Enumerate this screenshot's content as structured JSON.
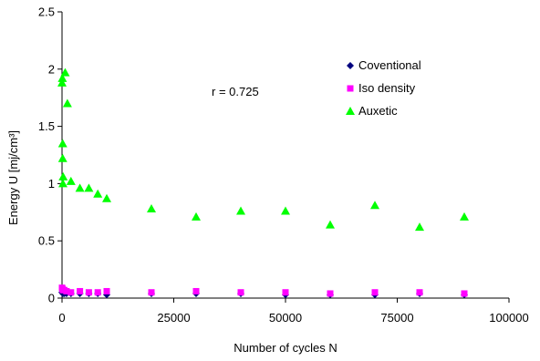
{
  "chart_data": {
    "type": "scatter",
    "xlabel": "Number of cycles N",
    "ylabel": "Energy U [mj/cm³]",
    "xlim": [
      0,
      100000
    ],
    "ylim": [
      0,
      2.5
    ],
    "x_ticks": [
      0,
      25000,
      50000,
      75000,
      100000
    ],
    "y_ticks": [
      0,
      0.5,
      1,
      1.5,
      2,
      2.5
    ],
    "x_tick_labels": [
      "0",
      "25000",
      "50000",
      "75000",
      "100000"
    ],
    "y_tick_labels": [
      "0",
      "0.5",
      "1",
      "1.5",
      "2",
      "2.5"
    ],
    "grid": false,
    "legend_position": "top-right",
    "annotation": "r = 0.725",
    "series": [
      {
        "name": "Coventional",
        "marker": "diamond",
        "color": "#000080",
        "points": [
          [
            0,
            0.05
          ],
          [
            100,
            0.05
          ],
          [
            200,
            0.04
          ],
          [
            500,
            0.04
          ],
          [
            1000,
            0.04
          ],
          [
            2000,
            0.04
          ],
          [
            4000,
            0.04
          ],
          [
            6000,
            0.04
          ],
          [
            8000,
            0.04
          ],
          [
            10000,
            0.03
          ],
          [
            20000,
            0.04
          ],
          [
            30000,
            0.04
          ],
          [
            40000,
            0.04
          ],
          [
            50000,
            0.03
          ],
          [
            60000,
            0.03
          ],
          [
            70000,
            0.03
          ],
          [
            80000,
            0.04
          ],
          [
            90000,
            0.03
          ]
        ]
      },
      {
        "name": "Iso density",
        "marker": "square",
        "color": "#FF00FF",
        "points": [
          [
            0,
            0.09
          ],
          [
            100,
            0.08
          ],
          [
            200,
            0.07
          ],
          [
            500,
            0.07
          ],
          [
            1000,
            0.06
          ],
          [
            2000,
            0.05
          ],
          [
            4000,
            0.06
          ],
          [
            6000,
            0.05
          ],
          [
            8000,
            0.05
          ],
          [
            10000,
            0.06
          ],
          [
            20000,
            0.05
          ],
          [
            30000,
            0.06
          ],
          [
            40000,
            0.05
          ],
          [
            50000,
            0.05
          ],
          [
            60000,
            0.04
          ],
          [
            70000,
            0.05
          ],
          [
            80000,
            0.05
          ],
          [
            90000,
            0.04
          ]
        ]
      },
      {
        "name": "Auxetic",
        "marker": "triangle",
        "color": "#00FF00",
        "points": [
          [
            0,
            1.88
          ],
          [
            80,
            1.92
          ],
          [
            150,
            1.35
          ],
          [
            150,
            1.22
          ],
          [
            250,
            1.06
          ],
          [
            200,
            1.0
          ],
          [
            700,
            1.97
          ],
          [
            1200,
            1.7
          ],
          [
            2000,
            1.02
          ],
          [
            4000,
            0.96
          ],
          [
            6000,
            0.96
          ],
          [
            8000,
            0.91
          ],
          [
            10000,
            0.87
          ],
          [
            20000,
            0.78
          ],
          [
            30000,
            0.71
          ],
          [
            40000,
            0.76
          ],
          [
            50000,
            0.76
          ],
          [
            60000,
            0.64
          ],
          [
            70000,
            0.81
          ],
          [
            80000,
            0.62
          ],
          [
            90000,
            0.71
          ]
        ]
      }
    ]
  }
}
